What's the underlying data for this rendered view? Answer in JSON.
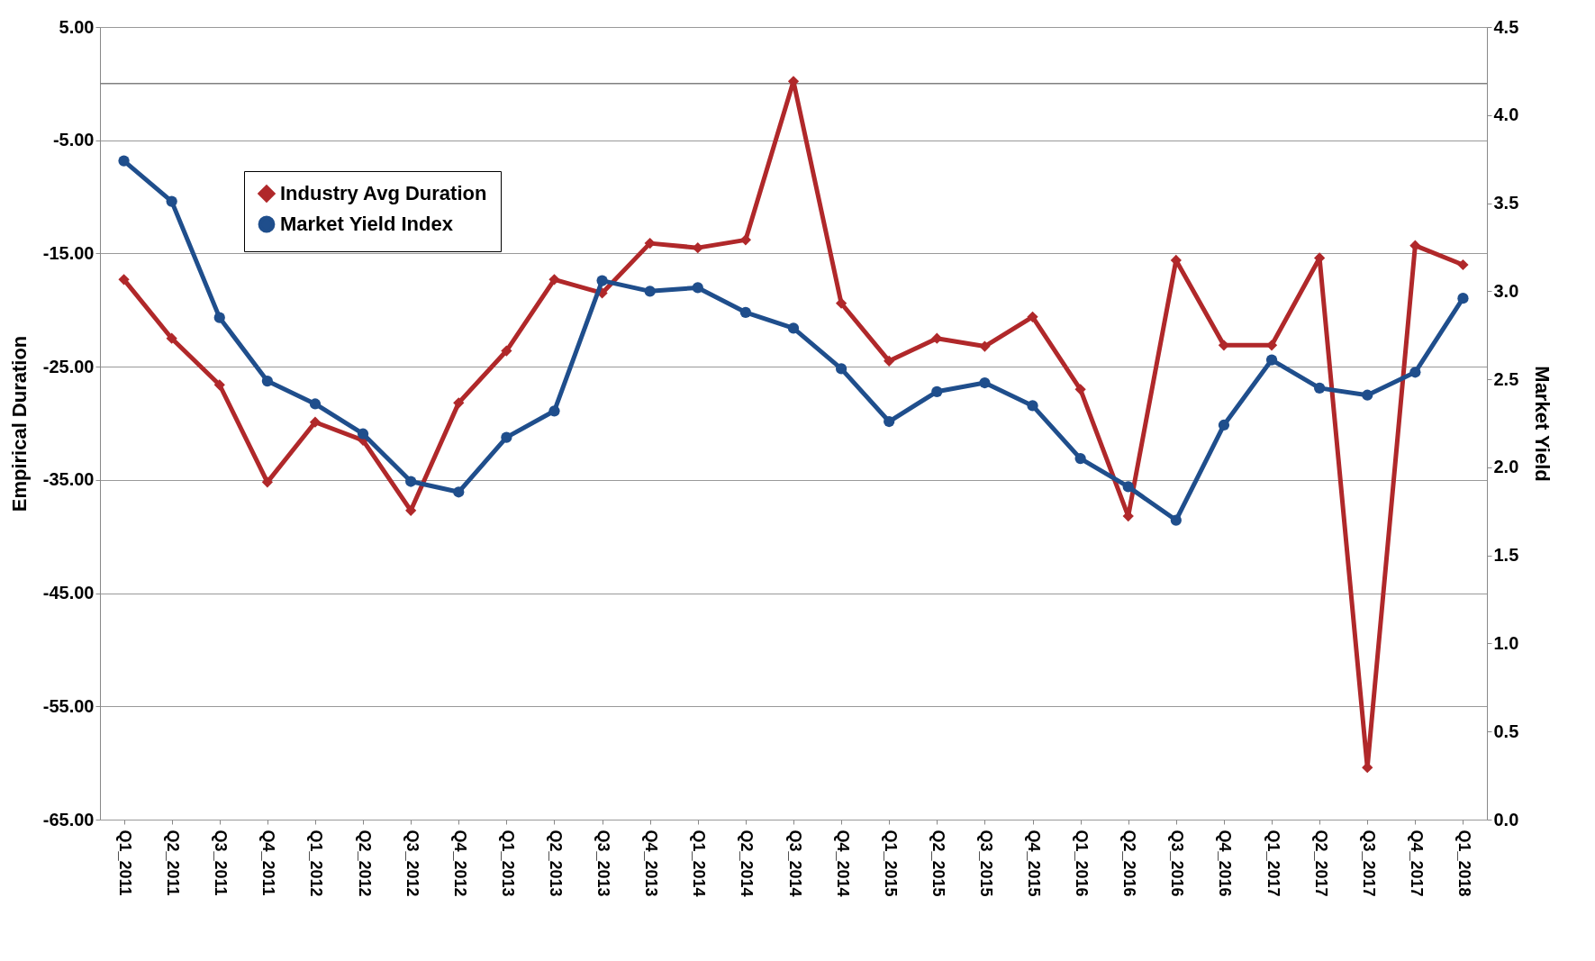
{
  "chart_data": {
    "type": "line",
    "ylabel": "Empirical Duration",
    "y2label": "Market Yield",
    "categories": [
      "Q1_2011",
      "Q2_2011",
      "Q3_2011",
      "Q4_2011",
      "Q1_2012",
      "Q2_2012",
      "Q3_2012",
      "Q4_2012",
      "Q1_2013",
      "Q2_2013",
      "Q3_2013",
      "Q4_2013",
      "Q1_2014",
      "Q2_2014",
      "Q3_2014",
      "Q4_2014",
      "Q1_2015",
      "Q2_2015",
      "Q3_2015",
      "Q4_2015",
      "Q1_2016",
      "Q2_2016",
      "Q3_2016",
      "Q4_2016",
      "Q1_2017",
      "Q2_2017",
      "Q3_2017",
      "Q4_2017",
      "Q1_2018"
    ],
    "series": [
      {
        "name": "Industry Avg Duration",
        "color": "#b0282a",
        "marker": "diamond",
        "values": [
          -17.3,
          -22.5,
          -26.6,
          -35.2,
          -29.9,
          -31.5,
          -37.7,
          -28.2,
          -23.6,
          -17.3,
          -18.5,
          -14.1,
          -14.5,
          -13.8,
          0.2,
          -19.4,
          -24.5,
          -22.5,
          -23.2,
          -20.6,
          -27.0,
          -38.2,
          -15.6,
          -23.1,
          -23.1,
          -15.4,
          -60.4,
          -14.3,
          -16.0
        ]
      },
      {
        "name": "Market Yield Index",
        "color": "#1f4e8c",
        "marker": "circle",
        "axis": "y2",
        "values": [
          3.74,
          3.51,
          2.85,
          2.49,
          2.36,
          2.19,
          1.92,
          1.86,
          2.17,
          2.32,
          3.06,
          3.0,
          3.02,
          2.88,
          2.79,
          2.56,
          2.26,
          2.43,
          2.48,
          2.35,
          2.05,
          1.89,
          1.7,
          2.24,
          2.61,
          2.45,
          2.41,
          2.54,
          2.96
        ]
      }
    ],
    "ylim": [
      -65,
      5
    ],
    "yticks": [
      {
        "value": 5,
        "label": "5.00"
      },
      {
        "value": -5,
        "label": "-5.00"
      },
      {
        "value": -15,
        "label": "-15.00"
      },
      {
        "value": -25,
        "label": "-25.00"
      },
      {
        "value": -35,
        "label": "-35.00"
      },
      {
        "value": -45,
        "label": "-45.00"
      },
      {
        "value": -55,
        "label": "-55.00"
      },
      {
        "value": -65,
        "label": "-65.00"
      }
    ],
    "y2lim": [
      0,
      4.5
    ],
    "y2ticks": [
      {
        "value": 0,
        "label": "0.0"
      },
      {
        "value": 0.5,
        "label": "0.5"
      },
      {
        "value": 1,
        "label": "1.0"
      },
      {
        "value": 1.5,
        "label": "1.5"
      },
      {
        "value": 2,
        "label": "2.0"
      },
      {
        "value": 2.5,
        "label": "2.5"
      },
      {
        "value": 3,
        "label": "3.0"
      },
      {
        "value": 3.5,
        "label": "3.5"
      },
      {
        "value": 4,
        "label": "4.0"
      },
      {
        "value": 4.5,
        "label": "4.5"
      }
    ],
    "ref_lines": [
      {
        "axis": "y",
        "value": 0,
        "color": "#808080"
      }
    ],
    "grid": "y",
    "legend": "top left",
    "line_style": "solid"
  }
}
